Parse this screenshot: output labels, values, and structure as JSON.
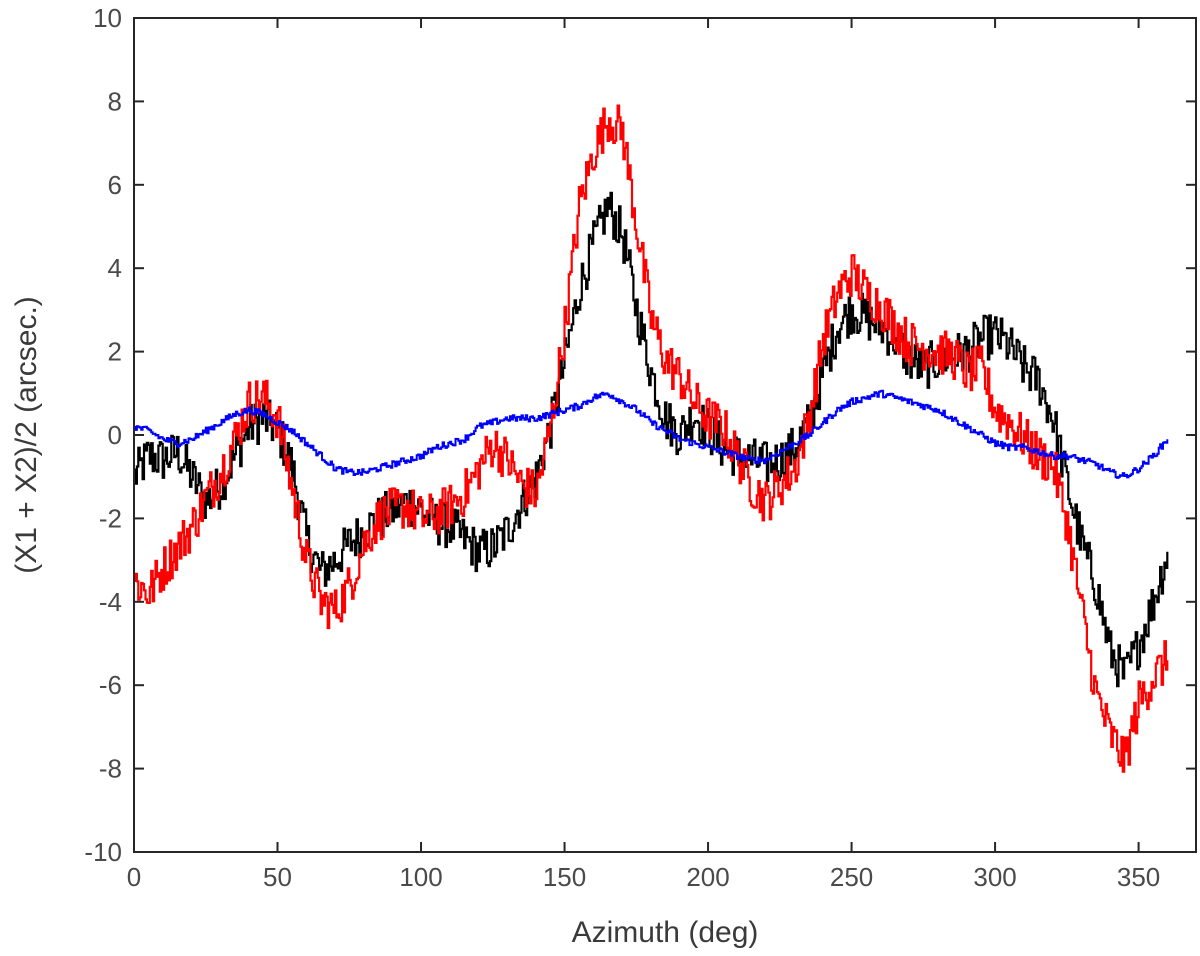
{
  "chart_data": {
    "type": "line",
    "title": "",
    "xlabel": "Azimuth (deg)",
    "ylabel": "(X1 + X2)/2 (arcsec.)",
    "xlim": [
      0,
      370
    ],
    "ylim": [
      -10,
      10
    ],
    "xticks": [
      0,
      50,
      100,
      150,
      200,
      250,
      300,
      350
    ],
    "yticks": [
      -10,
      -8,
      -6,
      -4,
      -2,
      0,
      2,
      4,
      6,
      8,
      10
    ],
    "xtick_labels": [
      "0",
      "50",
      "100",
      "150",
      "200",
      "250",
      "300",
      "350"
    ],
    "ytick_labels": [
      "-10",
      "-8",
      "-6",
      "-4",
      "-2",
      "0",
      "2",
      "4",
      "6",
      "8",
      "10"
    ],
    "grid": false,
    "legend": "none",
    "series": [
      {
        "color": "#000000",
        "x": [
          0,
          5,
          10,
          15,
          20,
          25,
          30,
          35,
          40,
          45,
          50,
          55,
          60,
          65,
          70,
          75,
          80,
          85,
          90,
          95,
          100,
          105,
          110,
          115,
          120,
          125,
          130,
          135,
          140,
          145,
          150,
          155,
          160,
          165,
          170,
          175,
          180,
          185,
          190,
          195,
          200,
          205,
          210,
          215,
          220,
          225,
          230,
          235,
          240,
          245,
          250,
          255,
          260,
          265,
          270,
          275,
          280,
          285,
          290,
          295,
          300,
          305,
          310,
          315,
          320,
          325,
          330,
          335,
          340,
          345,
          350,
          355,
          360
        ],
        "y": [
          -1.0,
          -0.5,
          -0.6,
          -0.4,
          -1.0,
          -1.6,
          -1.2,
          -0.5,
          0.2,
          0.4,
          0.1,
          -0.8,
          -2.5,
          -3.3,
          -3.0,
          -2.6,
          -2.3,
          -2.0,
          -1.8,
          -1.6,
          -1.8,
          -2.1,
          -2.2,
          -2.5,
          -2.8,
          -2.7,
          -2.3,
          -1.6,
          -1.0,
          0.2,
          1.8,
          3.5,
          4.6,
          5.5,
          4.8,
          3.0,
          1.5,
          0.4,
          0.0,
          0.5,
          0.1,
          -0.3,
          -0.5,
          -0.6,
          -0.7,
          -0.6,
          -0.3,
          0.3,
          1.5,
          2.6,
          3.0,
          2.8,
          2.6,
          2.3,
          1.8,
          1.6,
          1.8,
          1.9,
          2.0,
          2.3,
          2.4,
          2.1,
          1.6,
          1.3,
          0.4,
          -1.2,
          -2.6,
          -3.6,
          -5.2,
          -5.8,
          -5.0,
          -4.0,
          -2.8
        ]
      },
      {
        "color": "#ff0000",
        "x": [
          0,
          5,
          10,
          15,
          20,
          25,
          30,
          35,
          40,
          45,
          50,
          55,
          60,
          65,
          70,
          75,
          80,
          85,
          90,
          95,
          100,
          105,
          110,
          115,
          120,
          125,
          130,
          135,
          140,
          145,
          150,
          155,
          160,
          165,
          170,
          175,
          180,
          185,
          190,
          195,
          200,
          205,
          210,
          215,
          220,
          225,
          230,
          235,
          240,
          245,
          250,
          255,
          260,
          265,
          270,
          275,
          280,
          285,
          290,
          295,
          300,
          305,
          310,
          315,
          320,
          325,
          330,
          335,
          340,
          345,
          350,
          355,
          360
        ],
        "y": [
          -3.5,
          -3.8,
          -3.2,
          -2.7,
          -2.2,
          -1.5,
          -0.9,
          -0.1,
          0.8,
          0.9,
          0.4,
          -1.3,
          -3.0,
          -4.0,
          -4.2,
          -3.6,
          -2.6,
          -2.0,
          -1.8,
          -1.7,
          -2.0,
          -1.9,
          -1.7,
          -1.4,
          -0.8,
          -0.2,
          -0.6,
          -1.2,
          -1.4,
          0.2,
          2.6,
          5.5,
          6.8,
          7.6,
          7.3,
          5.0,
          2.8,
          1.8,
          1.4,
          0.8,
          0.4,
          0.2,
          -0.5,
          -1.2,
          -1.6,
          -1.2,
          -0.8,
          0.4,
          2.3,
          3.4,
          3.9,
          3.4,
          3.1,
          2.6,
          2.2,
          2.1,
          2.0,
          1.9,
          1.5,
          1.6,
          0.6,
          0.3,
          -0.1,
          -0.5,
          -0.7,
          -2.1,
          -4.2,
          -6.2,
          -7.2,
          -7.8,
          -6.4,
          -5.8,
          -5.4
        ]
      },
      {
        "color": "#0000ff",
        "x": [
          0,
          5,
          10,
          15,
          20,
          25,
          30,
          35,
          40,
          45,
          50,
          55,
          60,
          65,
          70,
          75,
          80,
          85,
          90,
          95,
          100,
          105,
          110,
          115,
          120,
          125,
          130,
          135,
          140,
          145,
          150,
          155,
          160,
          165,
          170,
          175,
          180,
          185,
          190,
          195,
          200,
          205,
          210,
          215,
          220,
          225,
          230,
          235,
          240,
          245,
          250,
          255,
          260,
          265,
          270,
          275,
          280,
          285,
          290,
          295,
          300,
          305,
          310,
          315,
          320,
          325,
          330,
          335,
          340,
          345,
          350,
          355,
          360
        ],
        "y": [
          0.2,
          0.1,
          -0.1,
          -0.2,
          -0.1,
          0.1,
          0.3,
          0.5,
          0.6,
          0.5,
          0.3,
          0.1,
          -0.2,
          -0.5,
          -0.8,
          -0.9,
          -0.9,
          -0.8,
          -0.7,
          -0.6,
          -0.5,
          -0.3,
          -0.2,
          -0.1,
          0.2,
          0.3,
          0.4,
          0.4,
          0.4,
          0.5,
          0.6,
          0.7,
          0.9,
          1.0,
          0.8,
          0.6,
          0.3,
          0.1,
          -0.1,
          -0.2,
          -0.3,
          -0.4,
          -0.5,
          -0.6,
          -0.6,
          -0.4,
          -0.2,
          0.0,
          0.3,
          0.6,
          0.8,
          0.9,
          1.0,
          0.9,
          0.8,
          0.7,
          0.6,
          0.4,
          0.2,
          0.0,
          -0.2,
          -0.3,
          -0.3,
          -0.4,
          -0.5,
          -0.5,
          -0.6,
          -0.7,
          -0.9,
          -1.0,
          -0.8,
          -0.5,
          -0.1
        ]
      }
    ]
  }
}
